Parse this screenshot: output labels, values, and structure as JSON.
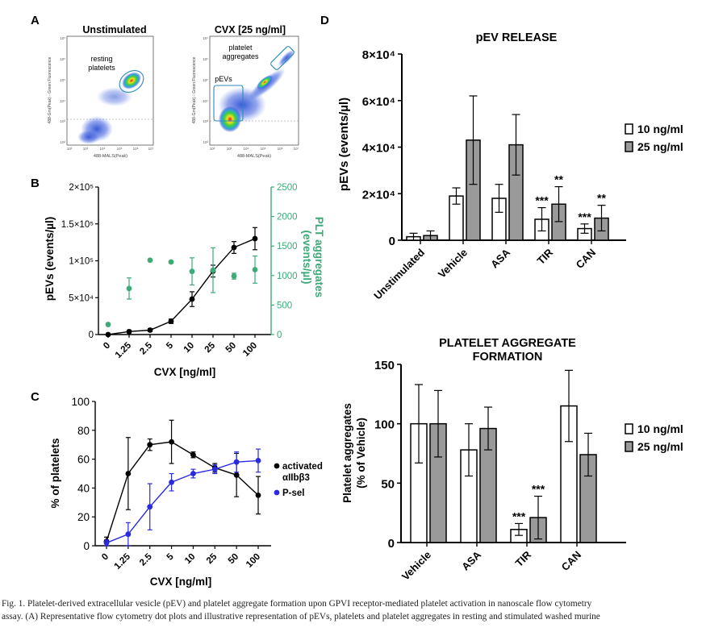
{
  "panels": {
    "A": {
      "letter": "A",
      "left": {
        "title": "Unstimulated",
        "gate_label_1": "resting",
        "gate_label_2": "platelets",
        "ylabel": "488-Grn(Peak) - Green Fluorescence",
        "xlabel": "488-MALS(Peak)"
      },
      "right": {
        "title": "CVX [25 ng/ml]",
        "gate_label_1": "platelet",
        "gate_label_2": "aggregates",
        "gate_label_3": "pEVs",
        "ylabel": "488-Grn(Peak) - Green Fluorescence",
        "xlabel": "488-MALS(Peak)"
      },
      "axis_ticks": [
        "10⁷",
        "10⁶",
        "10⁵",
        "10⁴",
        "10³",
        "10²"
      ],
      "x_ticks": [
        "10²",
        "10³",
        "10⁴",
        "10⁵",
        "10⁶",
        "10⁷"
      ]
    },
    "B": {
      "letter": "B"
    },
    "C": {
      "letter": "C"
    },
    "D": {
      "letter": "D"
    }
  },
  "colors": {
    "black_series": "#000000",
    "green_series": "#3daa78",
    "blue_series": "#2a2ae0",
    "open_bar": "#ffffff",
    "gray_bar": "#9a9a9a"
  },
  "chart_data": [
    {
      "id": "B",
      "type": "line",
      "categories": [
        "0",
        "1.25",
        "2.5",
        "5",
        "10",
        "25",
        "50",
        "100"
      ],
      "xlabel": "CVX [ng/ml]",
      "ylabel": "pEVs (events/µl)",
      "ylabel_right": "PLT aggregates (events/µl)",
      "ylim": [
        0,
        200000
      ],
      "ylim_right": [
        0,
        2500
      ],
      "yticks": [
        "0",
        "5×10⁴",
        "1×10⁵",
        "1.5×10⁵",
        "2×10⁵"
      ],
      "yticks_right": [
        "0",
        "500",
        "1000",
        "1500",
        "2000",
        "2500"
      ],
      "series": [
        {
          "name": "pEVs",
          "axis": "left",
          "color": "#000000",
          "values": [
            0,
            4000,
            6000,
            18000,
            48000,
            86000,
            118000,
            130000
          ],
          "errors": [
            500,
            2000,
            2000,
            3000,
            10000,
            8000,
            8000,
            15000
          ]
        },
        {
          "name": "PLT aggregates",
          "axis": "right",
          "color": "#3daa78",
          "values": [
            170,
            780,
            1260,
            1230,
            1070,
            1090,
            990,
            1100
          ],
          "errors": [
            0,
            180,
            0,
            0,
            230,
            380,
            50,
            230
          ]
        }
      ]
    },
    {
      "id": "C",
      "type": "line",
      "categories": [
        "0",
        "1.25",
        "2.5",
        "5",
        "10",
        "25",
        "50",
        "100"
      ],
      "xlabel": "CVX [ng/ml]",
      "ylabel": "% of platelets",
      "ylim": [
        0,
        100
      ],
      "yticks": [
        "0",
        "20",
        "40",
        "60",
        "80",
        "100"
      ],
      "legend": "right",
      "series": [
        {
          "name": "activated αIIbβ3",
          "name_line1": "activated",
          "name_line2": "αIIbβ3",
          "color": "#000000",
          "values": [
            3,
            50,
            70,
            72,
            63,
            54,
            49,
            35
          ],
          "errors": [
            3,
            25,
            4,
            15,
            2,
            3,
            15,
            13
          ]
        },
        {
          "name": "P-sel",
          "color": "#2a2ae0",
          "values": [
            2,
            8,
            27,
            44,
            50,
            53,
            58,
            59
          ],
          "errors": [
            2,
            8,
            16,
            6,
            3,
            3,
            7,
            8
          ]
        }
      ]
    },
    {
      "id": "D-top",
      "type": "bar",
      "title": "pEV RELEASE",
      "categories": [
        "Unstimulated",
        "Vehicle",
        "ASA",
        "TIR",
        "CAN"
      ],
      "ylabel": "pEVs (events/µl)",
      "ylim": [
        0,
        80000
      ],
      "yticks": [
        "0",
        "2×10⁴",
        "4×10⁴",
        "6×10⁴",
        "8×10⁴"
      ],
      "legend": "right",
      "series": [
        {
          "name": "10 ng/ml",
          "values": [
            1500,
            19000,
            18000,
            9000,
            5000
          ],
          "errors": [
            1500,
            3500,
            6000,
            5000,
            2000
          ],
          "annotations": [
            "",
            "",
            "",
            "***",
            "***"
          ]
        },
        {
          "name": "25 ng/ml",
          "values": [
            2000,
            43000,
            41000,
            15500,
            9500
          ],
          "errors": [
            2000,
            19000,
            13000,
            7500,
            5500
          ],
          "annotations": [
            "",
            "",
            "",
            "**",
            "**"
          ]
        }
      ]
    },
    {
      "id": "D-bottom",
      "type": "bar",
      "title": "PLATELET AGGREGATE",
      "title_line2": "FORMATION",
      "categories": [
        "Vehicle",
        "ASA",
        "TIR",
        "CAN"
      ],
      "ylabel": "Platelet aggregates",
      "ylabel_line2": "(% of Vehicle)",
      "ylim": [
        0,
        150
      ],
      "yticks": [
        "0",
        "50",
        "100",
        "150"
      ],
      "legend": "right",
      "series": [
        {
          "name": "10 ng/ml",
          "values": [
            100,
            78,
            11,
            115
          ],
          "errors": [
            33,
            22,
            5,
            30
          ],
          "annotations": [
            "",
            "",
            "***",
            ""
          ]
        },
        {
          "name": "25 ng/ml",
          "values": [
            100,
            96,
            21,
            74
          ],
          "errors": [
            28,
            18,
            18,
            18
          ],
          "annotations": [
            "",
            "",
            "***",
            ""
          ]
        }
      ]
    }
  ],
  "caption": {
    "line1": "Fig. 1. Platelet-derived extracellular vesicle (pEV) and platelet aggregate formation upon GPVI receptor-mediated platelet activation in nanoscale flow cytometry",
    "line2": "assay. (A) Representative flow cytometry dot plots and illustrative representation of pEVs, platelets and platelet aggregates in resting and stimulated washed murine"
  }
}
